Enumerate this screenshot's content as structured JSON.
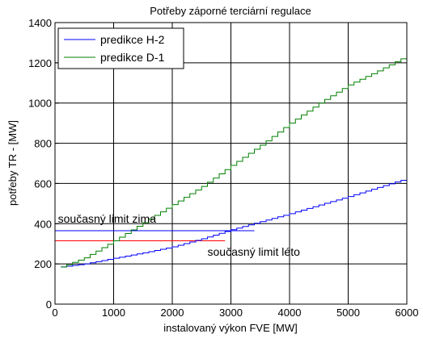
{
  "chart_data": {
    "type": "line",
    "title": "Potřeby záporné terciární regulace",
    "xlabel": "instalovaný výkon FVE [MW]",
    "ylabel": "potřeby TR - [MW]",
    "xlim": [
      0,
      6000
    ],
    "ylim": [
      0,
      1400
    ],
    "xticks": [
      0,
      1000,
      2000,
      3000,
      4000,
      5000,
      6000
    ],
    "yticks": [
      0,
      200,
      400,
      600,
      800,
      1000,
      1200,
      1400
    ],
    "grid": true,
    "legend_position": "top-left",
    "step_width": 100,
    "series": [
      {
        "name": "predikce H-2",
        "color": "#0000ff",
        "style": "step",
        "x": [
          100,
          500,
          1000,
          1500,
          2000,
          2500,
          3000,
          3500,
          4000,
          4500,
          5000,
          5500,
          6000
        ],
        "y": [
          185,
          200,
          228,
          255,
          285,
          325,
          370,
          410,
          450,
          493,
          535,
          580,
          625
        ]
      },
      {
        "name": "predikce D-1",
        "color": "#008000",
        "style": "step",
        "x": [
          100,
          500,
          1000,
          1500,
          2000,
          2500,
          3000,
          3500,
          4000,
          4500,
          5000,
          5500,
          6000
        ],
        "y": [
          185,
          230,
          315,
          405,
          495,
          585,
          690,
          790,
          900,
          1000,
          1090,
          1160,
          1235
        ]
      }
    ],
    "reference_lines": [
      {
        "y": 365,
        "x_from": 0,
        "x_to": 3400,
        "color": "#0000ff"
      },
      {
        "y": 315,
        "x_from": 0,
        "x_to": 2900,
        "color": "#ff0000"
      }
    ],
    "annotations": [
      {
        "text": "současný limit zima",
        "x": 50,
        "y": 405
      },
      {
        "text": "současný limit léto",
        "x": 2600,
        "y": 240
      }
    ]
  }
}
